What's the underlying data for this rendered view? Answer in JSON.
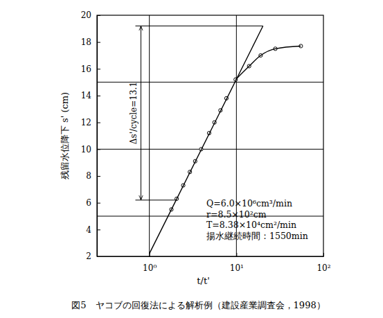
{
  "chart_data": {
    "type": "scatter",
    "title": "図5　ヤコブの回復法による解析例（建設産業調査会，1998）",
    "x_label": "t/t'",
    "y_label": "残留水位降下 s' (cm)",
    "log": "x",
    "grid": false,
    "xlim": [
      0.25,
      100
    ],
    "xticks": [
      {
        "value": 1,
        "label": "10⁰"
      },
      {
        "value": 10,
        "label": "10¹"
      },
      {
        "value": 100,
        "label": "10²"
      }
    ],
    "ylim": [
      2,
      20
    ],
    "yticks": [
      2,
      4,
      6,
      8,
      10,
      12,
      14,
      16,
      18,
      20
    ],
    "reference_lines": {
      "x": [
        1,
        10
      ],
      "y": [
        5,
        10,
        15
      ]
    },
    "series": [
      {
        "type": "scatter",
        "marker": "circle_open",
        "color": "#000000",
        "x": [
          1.79,
          2.06,
          2.45,
          2.92,
          3.36,
          3.94,
          4.86,
          5.6,
          6.56,
          7.68,
          9.8,
          14,
          19,
          28,
          55
        ],
        "values": [
          5.5,
          6.3,
          7.3,
          8.3,
          9.1,
          10.0,
          11.2,
          12.0,
          12.9,
          13.8,
          15.2,
          16.2,
          17.0,
          17.5,
          17.7
        ]
      },
      {
        "type": "line",
        "line_style": "solid",
        "color": "#000000",
        "x": [
          1,
          20.2
        ],
        "values": [
          2.2,
          19.2
        ]
      },
      {
        "type": "line",
        "line_style": "smooth",
        "color": "#000000",
        "x": [
          9.8,
          14,
          19,
          28,
          55
        ],
        "values": [
          15.2,
          16.2,
          17.0,
          17.5,
          17.7
        ]
      }
    ],
    "bracket": {
      "x": 0.8,
      "y": [
        6.2,
        19.2
      ],
      "label": "Δs'/cycle=13.1"
    },
    "annotations": [
      "Q=6.0×10⁶cm³/min",
      "r=8.5×10²cm",
      "T=8.38×10⁴cm²/min",
      "揚水継続時間：1550min"
    ]
  }
}
